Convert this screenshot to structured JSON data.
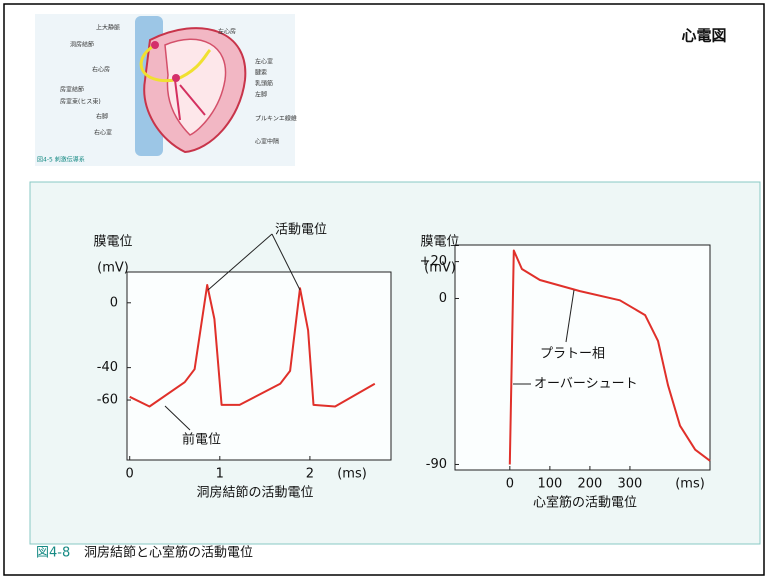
{
  "header": {
    "title": "心電図"
  },
  "heart_figure": {
    "labels": [
      "上大静脈",
      "洞房結節",
      "右心房",
      "房室結節",
      "房室束(ヒス束)",
      "右脚",
      "右心室",
      "左心房",
      "左心室",
      "腱索",
      "乳頭筋",
      "左脚",
      "プルキンエ線維",
      "心室中隔"
    ],
    "caption": "図4-5 刺激伝導系"
  },
  "chart_data": [
    {
      "type": "line",
      "y_label": "膜電位",
      "y_unit": "(mV)",
      "x_label": "(ms)",
      "subtitle": "洞房結節の活動電位",
      "annotations": [
        "活動電位",
        "前電位"
      ],
      "x": [
        0,
        0.22,
        0.61,
        0.72,
        0.86,
        0.94,
        1.02,
        1.22,
        1.67,
        1.78,
        1.89,
        1.98,
        2.04,
        2.28,
        2.72
      ],
      "values": [
        -58,
        -64,
        -49,
        -41,
        11,
        -10,
        -63,
        -63,
        -50,
        -42,
        9,
        -17,
        -63,
        -64,
        -50
      ],
      "color": "#e0302a",
      "xlim": [
        -0.03,
        2.9
      ],
      "ylim": [
        -97,
        19
      ],
      "xticks": [
        0,
        1,
        2
      ],
      "yticks": [
        0,
        -40,
        -60
      ]
    },
    {
      "type": "line",
      "y_label": "膜電位",
      "y_unit": "(mV)",
      "x_label": "(ms)",
      "subtitle": "心室筋の活動電位",
      "annotations": [
        "プラトー相",
        "オーバーシュート"
      ],
      "x": [
        0,
        10,
        30,
        75,
        175,
        275,
        338,
        370,
        395,
        425,
        463,
        500
      ],
      "values": [
        -90,
        26,
        16,
        10,
        4,
        -1,
        -9,
        -23,
        -47,
        -69,
        -82,
        -88
      ],
      "color": "#e0302a",
      "xlim": [
        -137,
        500
      ],
      "ylim": [
        -93,
        29
      ],
      "xticks": [
        0,
        100,
        200,
        300
      ],
      "yticks": [
        {
          "value": 20,
          "label": "+20"
        },
        0,
        -90
      ]
    }
  ],
  "figure_caption": {
    "label": "図4-8",
    "text": "洞房結節と心室筋の活動電位"
  }
}
